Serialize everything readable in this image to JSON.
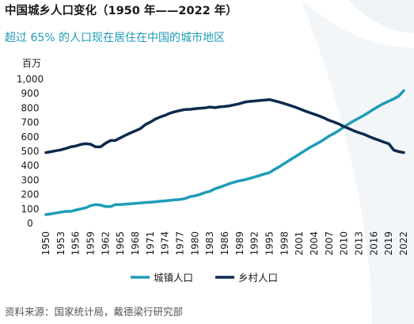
{
  "title": "中国城乡人口变化（1950 年——2022 年）",
  "subtitle": "超过 65% 的人口现在居住在中国的城市地区",
  "source": "资料来源：国家统计局，戴德梁行研究部",
  "colors": {
    "urban": "#1f9cb8",
    "rural": "#0d2a4e",
    "background_wave": "#eef3f6"
  },
  "chart_data": {
    "type": "line",
    "ylabel": "百万",
    "ylim": [
      0,
      1000
    ],
    "yticks": [
      0,
      100,
      200,
      300,
      400,
      500,
      600,
      700,
      800,
      900,
      "1,000"
    ],
    "xticks": [
      "1950",
      "1953",
      "1956",
      "1959",
      "1962",
      "1965",
      "1968",
      "1971",
      "1974",
      "1977",
      "1980",
      "1983",
      "1986",
      "1989",
      "1992",
      "1995",
      "1998",
      "2001",
      "2004",
      "2007",
      "2010",
      "2013",
      "2016",
      "2019",
      "2022"
    ],
    "x": [
      1950,
      1951,
      1952,
      1953,
      1954,
      1955,
      1956,
      1957,
      1958,
      1959,
      1960,
      1961,
      1962,
      1963,
      1964,
      1965,
      1966,
      1967,
      1968,
      1969,
      1970,
      1971,
      1972,
      1973,
      1974,
      1975,
      1976,
      1977,
      1978,
      1979,
      1980,
      1981,
      1982,
      1983,
      1984,
      1985,
      1986,
      1987,
      1988,
      1989,
      1990,
      1991,
      1992,
      1993,
      1994,
      1995,
      1996,
      1997,
      1998,
      1999,
      2000,
      2001,
      2002,
      2003,
      2004,
      2005,
      2006,
      2007,
      2008,
      2009,
      2010,
      2011,
      2012,
      2013,
      2014,
      2015,
      2016,
      2017,
      2018,
      2019,
      2020,
      2021,
      2022
    ],
    "series": [
      {
        "name": "城镇人口",
        "color": "#1f9cb8",
        "values": [
          61,
          66,
          72,
          78,
          83,
          83,
          93,
          100,
          108,
          123,
          131,
          127,
          117,
          117,
          130,
          130,
          133,
          136,
          139,
          142,
          145,
          147,
          150,
          154,
          156,
          160,
          163,
          166,
          172,
          185,
          191,
          201,
          214,
          222,
          240,
          251,
          264,
          277,
          287,
          296,
          302,
          312,
          322,
          332,
          343,
          352,
          374,
          394,
          416,
          438,
          459,
          481,
          502,
          524,
          543,
          562,
          583,
          606,
          624,
          645,
          670,
          691,
          712,
          731,
          750,
          771,
          793,
          813,
          832,
          848,
          864,
          883,
          921
        ]
      },
      {
        "name": "乡村人口",
        "color": "#0d2a4e",
        "values": [
          491,
          497,
          504,
          510,
          520,
          531,
          537,
          547,
          553,
          549,
          531,
          531,
          556,
          575,
          576,
          594,
          611,
          627,
          642,
          657,
          685,
          702,
          723,
          738,
          750,
          765,
          775,
          783,
          790,
          791,
          795,
          799,
          801,
          807,
          803,
          808,
          811,
          816,
          823,
          831,
          841,
          846,
          849,
          852,
          855,
          859,
          850,
          841,
          831,
          820,
          808,
          795,
          782,
          769,
          757,
          745,
          731,
          715,
          703,
          689,
          671,
          657,
          642,
          629,
          618,
          603,
          589,
          577,
          564,
          552,
          509,
          498,
          491
        ]
      }
    ]
  }
}
